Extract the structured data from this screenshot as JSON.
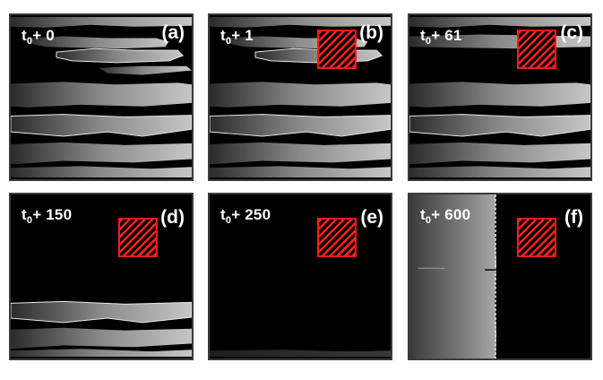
{
  "panels": [
    {
      "label": "(a)",
      "time_base": "t",
      "time_sub": "0",
      "time_offset": "+ 0",
      "hatched_region": false
    },
    {
      "label": "(b)",
      "time_base": "t",
      "time_sub": "0",
      "time_offset": "+ 1",
      "hatched_region": true
    },
    {
      "label": "(c)",
      "time_base": "t",
      "time_sub": "0",
      "time_offset": "+ 61",
      "hatched_region": true
    },
    {
      "label": "(d)",
      "time_base": "t",
      "time_sub": "0",
      "time_offset": "+ 150",
      "hatched_region": true
    },
    {
      "label": "(e)",
      "time_base": "t",
      "time_sub": "0",
      "time_offset": "+ 250",
      "hatched_region": true
    },
    {
      "label": "(f)",
      "time_base": "t",
      "time_sub": "0",
      "time_offset": "+ 600",
      "hatched_region": true
    }
  ],
  "colors": {
    "background": "#000000",
    "hatch": "#ff2020",
    "text": "#ffffff",
    "frame": "#3a3a3a"
  }
}
